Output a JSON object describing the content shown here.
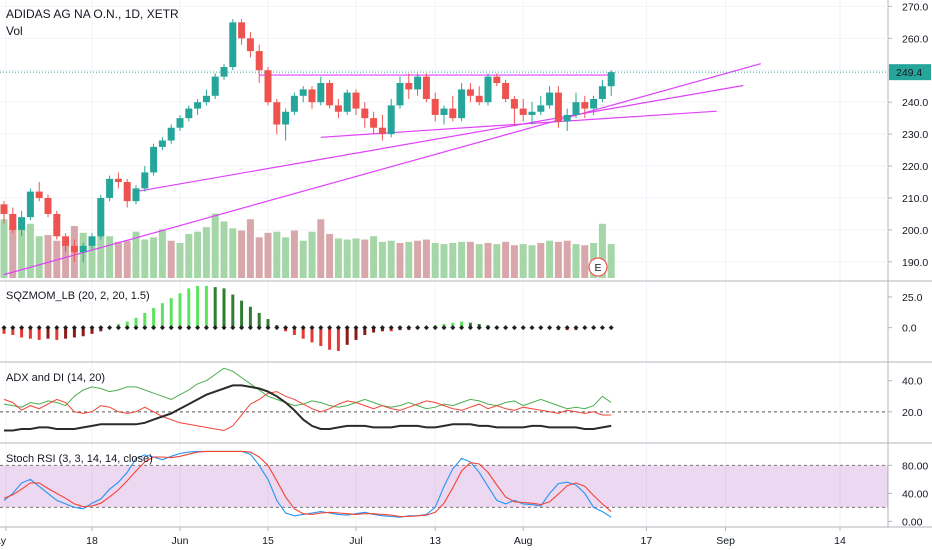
{
  "header": {
    "title": "ADIDAS AG NA O.N., 1D, XETR",
    "volume_label": "Vol"
  },
  "colors": {
    "up": "#26a69a",
    "down": "#ef5350",
    "vol_up": "#a5d6a7",
    "vol_down": "#d8a7ab",
    "trend": "#e040fb",
    "last_price": "#26a69a"
  },
  "chart_data": [
    {
      "type": "candlestick",
      "title": "ADIDAS AG NA O.N., 1D, XETR",
      "y_ticks": [
        190.0,
        200.0,
        210.0,
        220.0,
        230.0,
        240.0,
        250.0,
        260.0,
        270.0
      ],
      "ylim": [
        184,
        272
      ],
      "last_price_label": "249.4",
      "x_tick_labels": [
        "May",
        "18",
        "Jun",
        "15",
        "Jul",
        "13",
        "Aug",
        "17",
        "Sep",
        "14"
      ],
      "earnings_marker": "E",
      "ohlc": [
        [
          208,
          209,
          202,
          205
        ],
        [
          205,
          207,
          199,
          200
        ],
        [
          200,
          206,
          198,
          204
        ],
        [
          204,
          213,
          203,
          212
        ],
        [
          212,
          215,
          209,
          210
        ],
        [
          210,
          211,
          204,
          205
        ],
        [
          205,
          206,
          197,
          198
        ],
        [
          198,
          199,
          193,
          195
        ],
        [
          195,
          197,
          190,
          193
        ],
        [
          193,
          196,
          190,
          195
        ],
        [
          195,
          199,
          194,
          198
        ],
        [
          198,
          211,
          197,
          210
        ],
        [
          210,
          217,
          209,
          216
        ],
        [
          216,
          218,
          213,
          215
        ],
        [
          215,
          216,
          207,
          209
        ],
        [
          209,
          214,
          208,
          213
        ],
        [
          213,
          220,
          212,
          218
        ],
        [
          218,
          227,
          217,
          226
        ],
        [
          226,
          229,
          225,
          228
        ],
        [
          228,
          233,
          227,
          232
        ],
        [
          232,
          236,
          231,
          235
        ],
        [
          235,
          239,
          234,
          238
        ],
        [
          238,
          241,
          236,
          240
        ],
        [
          240,
          244,
          239,
          242
        ],
        [
          242,
          249,
          241,
          248
        ],
        [
          248,
          252,
          247,
          251
        ],
        [
          251,
          266,
          250,
          265
        ],
        [
          265,
          266,
          258,
          260
        ],
        [
          260,
          262,
          254,
          256
        ],
        [
          256,
          258,
          246,
          250
        ],
        [
          250,
          251,
          239,
          240
        ],
        [
          240,
          241,
          230,
          233
        ],
        [
          233,
          238,
          228,
          237
        ],
        [
          237,
          243,
          236,
          242
        ],
        [
          242,
          245,
          240,
          244
        ],
        [
          244,
          245,
          238,
          240
        ],
        [
          240,
          248,
          239,
          246
        ],
        [
          246,
          247,
          238,
          239
        ],
        [
          239,
          241,
          235,
          237
        ],
        [
          237,
          244,
          236,
          243
        ],
        [
          243,
          244,
          236,
          238
        ],
        [
          238,
          240,
          232,
          235
        ],
        [
          235,
          237,
          230,
          232
        ],
        [
          232,
          236,
          228,
          230
        ],
        [
          230,
          241,
          229,
          239
        ],
        [
          239,
          248,
          238,
          246
        ],
        [
          246,
          249,
          241,
          244
        ],
        [
          244,
          249,
          242,
          248
        ],
        [
          248,
          249,
          240,
          241
        ],
        [
          241,
          243,
          234,
          236
        ],
        [
          236,
          239,
          233,
          238
        ],
        [
          238,
          242,
          234,
          235
        ],
        [
          235,
          246,
          234,
          244
        ],
        [
          244,
          246,
          240,
          242
        ],
        [
          242,
          245,
          239,
          240
        ],
        [
          240,
          249,
          239,
          248
        ],
        [
          248,
          249,
          245,
          246
        ],
        [
          246,
          247,
          240,
          241
        ],
        [
          241,
          242,
          233,
          238
        ],
        [
          238,
          241,
          234,
          236
        ],
        [
          236,
          240,
          233,
          237
        ],
        [
          237,
          242,
          236,
          239
        ],
        [
          239,
          245,
          238,
          243
        ],
        [
          243,
          245,
          232,
          234
        ],
        [
          234,
          238,
          231,
          236
        ],
        [
          236,
          243,
          235,
          240
        ],
        [
          240,
          242,
          235,
          238
        ],
        [
          238,
          242,
          236,
          241
        ],
        [
          241,
          247,
          240,
          245
        ],
        [
          245,
          250,
          242,
          249.4
        ]
      ],
      "volume": [
        [
          52,
          1
        ],
        [
          46,
          0
        ],
        [
          43,
          1
        ],
        [
          48,
          1
        ],
        [
          37,
          1
        ],
        [
          38,
          0
        ],
        [
          33,
          0
        ],
        [
          32,
          0
        ],
        [
          46,
          0
        ],
        [
          40,
          1
        ],
        [
          36,
          1
        ],
        [
          42,
          1
        ],
        [
          37,
          1
        ],
        [
          32,
          0
        ],
        [
          33,
          0
        ],
        [
          41,
          1
        ],
        [
          34,
          1
        ],
        [
          36,
          1
        ],
        [
          43,
          1
        ],
        [
          33,
          0
        ],
        [
          31,
          1
        ],
        [
          39,
          1
        ],
        [
          41,
          1
        ],
        [
          45,
          1
        ],
        [
          57,
          1
        ],
        [
          50,
          1
        ],
        [
          44,
          1
        ],
        [
          42,
          0
        ],
        [
          52,
          0
        ],
        [
          36,
          0
        ],
        [
          40,
          0
        ],
        [
          41,
          1
        ],
        [
          36,
          1
        ],
        [
          42,
          0
        ],
        [
          33,
          1
        ],
        [
          41,
          1
        ],
        [
          52,
          0
        ],
        [
          39,
          0
        ],
        [
          35,
          1
        ],
        [
          34,
          1
        ],
        [
          35,
          1
        ],
        [
          34,
          0
        ],
        [
          37,
          1
        ],
        [
          32,
          1
        ],
        [
          33,
          1
        ],
        [
          31,
          0
        ],
        [
          32,
          1
        ],
        [
          33,
          0
        ],
        [
          34,
          0
        ],
        [
          31,
          1
        ],
        [
          30,
          1
        ],
        [
          31,
          1
        ],
        [
          32,
          1
        ],
        [
          32,
          0
        ],
        [
          30,
          1
        ],
        [
          31,
          0
        ],
        [
          30,
          1
        ],
        [
          32,
          0
        ],
        [
          29,
          0
        ],
        [
          30,
          1
        ],
        [
          29,
          1
        ],
        [
          31,
          0
        ],
        [
          33,
          1
        ],
        [
          32,
          0
        ],
        [
          33,
          0
        ],
        [
          30,
          1
        ],
        [
          29,
          0
        ],
        [
          31,
          1
        ],
        [
          48,
          1
        ],
        [
          30,
          1
        ]
      ],
      "trendlines": [
        {
          "from_bar": 29,
          "from_price": 248.5,
          "to_bar": 69,
          "to_price": 248.5,
          "extend_bars": 0
        },
        {
          "from_bar": 0,
          "from_price": 186,
          "to_bar": 69,
          "to_price": 239,
          "extend_bars": 17
        },
        {
          "from_bar": 15,
          "from_price": 212,
          "to_bar": 69,
          "to_price": 238,
          "extend_bars": 15
        },
        {
          "from_bar": 36,
          "from_price": 229,
          "to_bar": 69,
          "to_price": 235,
          "extend_bars": 12
        }
      ]
    },
    {
      "type": "histogram",
      "title": "SQZMOM_LB (20, 2, 20, 1.5)",
      "y_ticks": [
        25.0,
        0.0
      ],
      "ylim": [
        -28,
        38
      ],
      "values": [
        -5,
        -6,
        -8,
        -9,
        -10,
        -9,
        -10,
        -9,
        -8,
        -7,
        -5,
        -3,
        1,
        3,
        5,
        8,
        12,
        16,
        20,
        24,
        28,
        32,
        34,
        34,
        33,
        32,
        27,
        22,
        17,
        12,
        7,
        2,
        -3,
        -6,
        -9,
        -12,
        -15,
        -18,
        -19,
        -14,
        -10,
        -6,
        -4,
        -3,
        -3,
        -2,
        -2,
        -1,
        1,
        2,
        3,
        4,
        5,
        4,
        3,
        2,
        1,
        1,
        0,
        -1,
        -1,
        -1,
        -1,
        -2,
        -2,
        -2,
        -1,
        -1,
        1,
        0
      ]
    },
    {
      "type": "line",
      "title": "ADX and DI (14, 20)",
      "y_ticks": [
        40.0,
        20.0
      ],
      "ylim": [
        0,
        52
      ],
      "threshold": 20,
      "series": [
        {
          "key": "plus_di",
          "color": "#4caf50",
          "values": [
            25,
            24,
            23,
            26,
            25,
            27,
            26,
            24,
            30,
            34,
            36,
            35,
            33,
            34,
            36,
            36,
            34,
            32,
            30,
            28,
            31,
            34,
            38,
            40,
            44,
            48,
            46,
            42,
            38,
            34,
            30,
            28,
            26,
            24,
            25,
            27,
            26,
            24,
            23,
            24,
            26,
            28,
            26,
            24,
            23,
            24,
            26,
            24,
            22,
            23,
            25,
            24,
            26,
            28,
            27,
            25,
            24,
            26,
            27,
            24,
            26,
            28,
            26,
            24,
            22,
            23,
            22,
            24,
            30,
            26
          ]
        },
        {
          "key": "minus_di",
          "color": "#f44336",
          "values": [
            28,
            26,
            21,
            24,
            22,
            25,
            28,
            26,
            20,
            19,
            20,
            24,
            23,
            20,
            19,
            20,
            23,
            20,
            17,
            15,
            13,
            12,
            11,
            10,
            9,
            8,
            11,
            18,
            25,
            28,
            32,
            33,
            30,
            28,
            25,
            22,
            20,
            22,
            25,
            27,
            26,
            24,
            22,
            24,
            22,
            21,
            23,
            25,
            27,
            26,
            24,
            22,
            21,
            23,
            25,
            22,
            24,
            22,
            21,
            23,
            22,
            21,
            20,
            19,
            21,
            20,
            19,
            20,
            18,
            18
          ]
        },
        {
          "key": "adx",
          "color": "#2b2b2b",
          "values": [
            8,
            8,
            9,
            9,
            10,
            10,
            9,
            9,
            9,
            10,
            11,
            12,
            12,
            12,
            12,
            12,
            13,
            15,
            17,
            19,
            22,
            25,
            28,
            31,
            33,
            35,
            37,
            37,
            36,
            35,
            33,
            30,
            26,
            21,
            15,
            11,
            9,
            9,
            10,
            11,
            11,
            11,
            10,
            10,
            10,
            11,
            11,
            11,
            10,
            10,
            11,
            12,
            12,
            12,
            11,
            11,
            10,
            10,
            10,
            10,
            11,
            11,
            10,
            10,
            10,
            10,
            9,
            9,
            10,
            11
          ]
        }
      ]
    },
    {
      "type": "line",
      "title": "Stoch RSI (3, 3, 14, 14, close)",
      "y_ticks": [
        80.0,
        40.0,
        0.0
      ],
      "ylim": [
        -8,
        112
      ],
      "band": [
        20,
        80
      ],
      "series": [
        {
          "key": "k",
          "color": "#2196f3",
          "values": [
            30,
            40,
            55,
            60,
            50,
            40,
            30,
            25,
            20,
            18,
            26,
            32,
            46,
            56,
            70,
            90,
            95,
            92,
            88,
            93,
            97,
            99,
            100,
            100,
            100,
            100,
            100,
            100,
            96,
            80,
            60,
            30,
            12,
            8,
            10,
            12,
            14,
            12,
            10,
            9,
            11,
            13,
            10,
            8,
            7,
            6,
            8,
            8,
            10,
            20,
            50,
            75,
            90,
            85,
            70,
            50,
            30,
            25,
            30,
            25,
            24,
            22,
            40,
            54,
            56,
            52,
            40,
            20,
            14,
            6
          ]
        },
        {
          "key": "d",
          "color": "#f44336",
          "values": [
            33,
            38,
            46,
            55,
            55,
            47,
            40,
            33,
            25,
            21,
            22,
            26,
            35,
            45,
            58,
            72,
            85,
            92,
            92,
            91,
            93,
            96,
            99,
            100,
            100,
            100,
            100,
            100,
            99,
            92,
            80,
            58,
            35,
            18,
            11,
            10,
            12,
            13,
            12,
            11,
            10,
            11,
            11,
            10,
            9,
            7,
            7,
            8,
            9,
            13,
            26,
            48,
            72,
            84,
            82,
            70,
            52,
            35,
            28,
            27,
            26,
            24,
            28,
            39,
            51,
            55,
            50,
            37,
            25,
            14
          ]
        }
      ]
    }
  ]
}
